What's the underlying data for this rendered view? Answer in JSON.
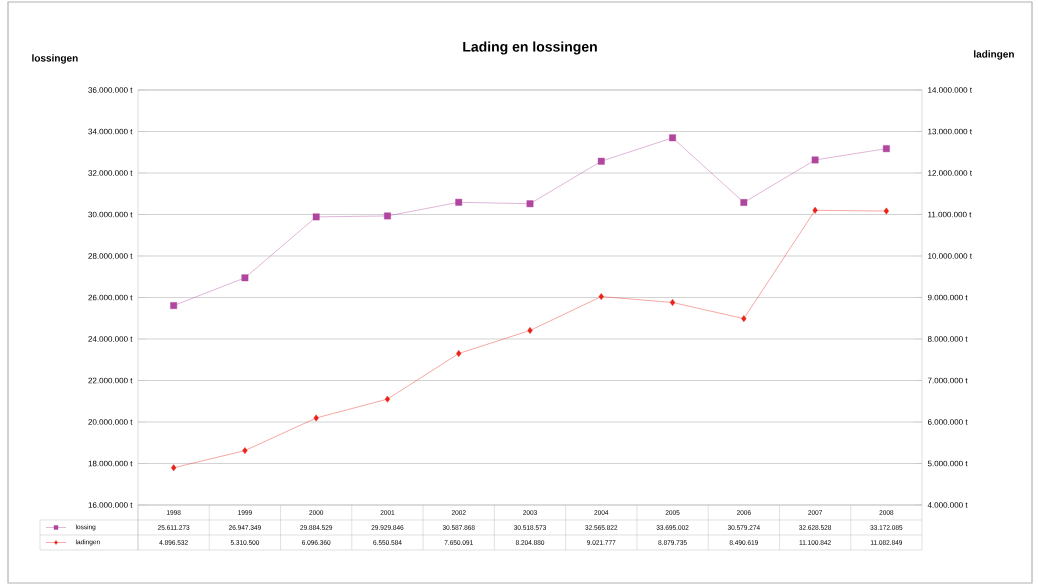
{
  "chart_data": {
    "type": "line",
    "title": "Lading en lossingen",
    "ylabel": "lossingen",
    "y2label": "ladingen",
    "categories": [
      "1998",
      "1999",
      "2000",
      "2001",
      "2002",
      "2003",
      "2004",
      "2005",
      "2006",
      "2007",
      "2008"
    ],
    "series": [
      {
        "name": "lossing",
        "color": "#b0469e",
        "marker": "square",
        "values": [
          25611273,
          26947349,
          29884529,
          29929846,
          30587868,
          30518573,
          32565822,
          33695002,
          30579274,
          32628528,
          33172085
        ],
        "value_labels": [
          "25.611.273",
          "26.947.349",
          "29.884.529",
          "29.929.846",
          "30.587.868",
          "30.518.573",
          "32.565.822",
          "33.695.002",
          "30.579.274",
          "32.628.528",
          "33.172.085"
        ]
      },
      {
        "name": "ladingen",
        "color": "#e8231a",
        "marker": "diamond",
        "axis": "y2",
        "values": [
          4896532,
          5310500,
          6096360,
          6550584,
          7650091,
          8204880,
          9021777,
          8879735,
          8490619,
          11100842,
          11082849
        ],
        "value_labels": [
          "4.896.532",
          "5.310.500",
          "6.096.360",
          "6.550.584",
          "7.650.091",
          "8.204.880",
          "9.021.777",
          "8.879.735",
          "8.490.619",
          "11.100.842",
          "11.082.849"
        ]
      }
    ],
    "ylim": [
      16000000,
      36000000
    ],
    "yticks": [
      {
        "value": 16000000,
        "label": "16.000.000 t"
      },
      {
        "value": 18000000,
        "label": "18.000.000 t"
      },
      {
        "value": 20000000,
        "label": "20.000.000 t"
      },
      {
        "value": 22000000,
        "label": "22.000.000 t"
      },
      {
        "value": 24000000,
        "label": "24.000.000 t"
      },
      {
        "value": 26000000,
        "label": "26.000.000 t"
      },
      {
        "value": 28000000,
        "label": "28.000.000 t"
      },
      {
        "value": 30000000,
        "label": "30.000.000 t"
      },
      {
        "value": 32000000,
        "label": "32.000.000 t"
      },
      {
        "value": 34000000,
        "label": "34.000.000 t"
      },
      {
        "value": 36000000,
        "label": "36.000.000 t"
      }
    ],
    "y2lim": [
      4000000,
      14000000
    ],
    "y2ticks": [
      {
        "value": 4000000,
        "label": "4.000.000 t"
      },
      {
        "value": 5000000,
        "label": "5.000.000 t"
      },
      {
        "value": 6000000,
        "label": "6.000.000 t"
      },
      {
        "value": 7000000,
        "label": "7.000.000 t"
      },
      {
        "value": 8000000,
        "label": "8.000.000 t"
      },
      {
        "value": 9000000,
        "label": "9.000.000 t"
      },
      {
        "value": 10000000,
        "label": "10.000.000 t"
      },
      {
        "value": 11000000,
        "label": "11.000.000 t"
      },
      {
        "value": 12000000,
        "label": "12.000.000 t"
      },
      {
        "value": 13000000,
        "label": "13.000.000 t"
      },
      {
        "value": 14000000,
        "label": "14.000.000 t"
      }
    ],
    "grid": "y",
    "legend": "bottom",
    "line_style": "solid"
  }
}
